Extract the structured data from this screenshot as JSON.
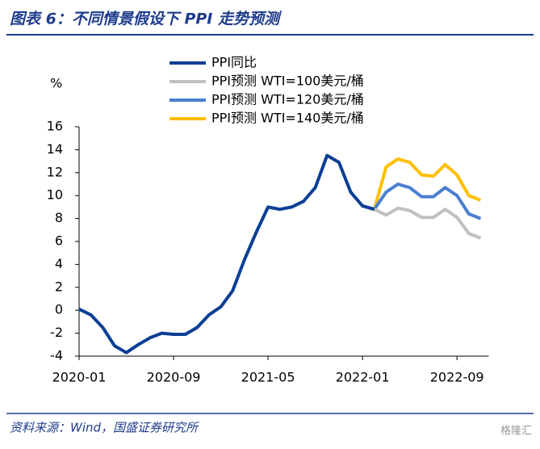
{
  "chart_data": {
    "type": "line",
    "title": "图表 6：不同情景假设下 PPI 走势预测",
    "y_unit": "%",
    "source": "资料来源：Wind，国盛证券研究所",
    "watermark": "格隆汇",
    "categories": [
      "2020-01",
      null,
      null,
      null,
      null,
      null,
      null,
      null,
      "2020-09",
      null,
      null,
      null,
      null,
      null,
      null,
      null,
      "2021-05",
      null,
      null,
      null,
      null,
      null,
      null,
      null,
      "2022-01",
      null,
      null,
      null,
      null,
      null,
      null,
      null,
      "2022-09",
      null,
      null
    ],
    "ylim": [
      -4,
      16
    ],
    "yticks": [
      -4,
      -2,
      0,
      2,
      4,
      6,
      8,
      10,
      12,
      14,
      16
    ],
    "series": [
      {
        "name": "PPI同比",
        "color": "#0b3f94",
        "values": [
          0.1,
          -0.4,
          -1.5,
          -3.1,
          -3.7,
          -3.0,
          -2.4,
          -2.0,
          -2.1,
          -2.1,
          -1.5,
          -0.4,
          0.3,
          1.7,
          4.4,
          6.8,
          9.0,
          8.8,
          9.0,
          9.5,
          10.7,
          13.5,
          12.9,
          10.3,
          9.1,
          8.8,
          null,
          null,
          null,
          null,
          null,
          null,
          null,
          null,
          null
        ]
      },
      {
        "name": "PPI预测 WTI=100美元/桶",
        "color": "#c0c0c0",
        "values": [
          null,
          null,
          null,
          null,
          null,
          null,
          null,
          null,
          null,
          null,
          null,
          null,
          null,
          null,
          null,
          null,
          null,
          null,
          null,
          null,
          null,
          null,
          null,
          null,
          9.1,
          8.8,
          8.3,
          8.9,
          8.7,
          8.1,
          8.1,
          8.8,
          8.1,
          6.7,
          6.3
        ]
      },
      {
        "name": "PPI预测 WTI=120美元/桶",
        "color": "#4a7fd0",
        "values": [
          null,
          null,
          null,
          null,
          null,
          null,
          null,
          null,
          null,
          null,
          null,
          null,
          null,
          null,
          null,
          null,
          null,
          null,
          null,
          null,
          null,
          null,
          null,
          null,
          9.1,
          8.8,
          10.3,
          11.0,
          10.7,
          9.9,
          9.9,
          10.7,
          10.0,
          8.4,
          8.0
        ]
      },
      {
        "name": "PPI预测 WTI=140美元/桶",
        "color": "#ffbf00",
        "values": [
          null,
          null,
          null,
          null,
          null,
          null,
          null,
          null,
          null,
          null,
          null,
          null,
          null,
          null,
          null,
          null,
          null,
          null,
          null,
          null,
          null,
          null,
          null,
          null,
          9.1,
          8.8,
          12.5,
          13.2,
          12.9,
          11.8,
          11.7,
          12.7,
          11.8,
          10.0,
          9.6
        ]
      }
    ]
  }
}
